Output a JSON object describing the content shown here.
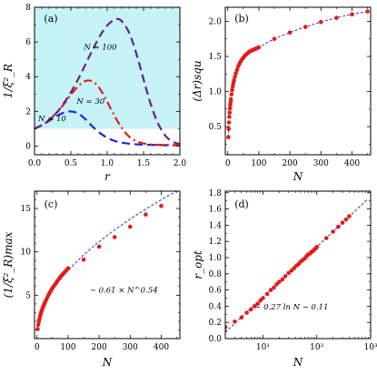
{
  "colors": {
    "shade": "#c5f3f6",
    "blue": "#1f24e0",
    "red": "#e41b17",
    "purple": "#6e1f8c",
    "fit": "#2f32d8"
  },
  "chart_data": [
    {
      "panel": "(a)",
      "type": "line",
      "xlabel": "r",
      "ylabel": "1/ξ²_R",
      "xlim": [
        0,
        2
      ],
      "ylim": [
        -0.5,
        8
      ],
      "xticks": [
        "0.0",
        "0.5",
        "1.0",
        "1.5",
        "2.0"
      ],
      "yticks": [
        "0",
        "2",
        "4",
        "6",
        "8"
      ],
      "shaded_region": {
        "y_from": 1,
        "y_to": 8
      },
      "series": [
        {
          "name": "N = 10",
          "style": "dashed",
          "color": "blue",
          "x": [
            0,
            0.1,
            0.2,
            0.3,
            0.4,
            0.5,
            0.6,
            0.7,
            0.8,
            0.9,
            1.0,
            1.1,
            1.2,
            1.3,
            1.4,
            1.5,
            1.6,
            1.7,
            1.8,
            1.9,
            2.0
          ],
          "y": [
            1.0,
            1.2,
            1.45,
            1.72,
            1.92,
            2.0,
            1.88,
            1.55,
            1.12,
            0.75,
            0.48,
            0.3,
            0.2,
            0.14,
            0.1,
            0.08,
            0.07,
            0.06,
            0.05,
            0.05,
            0.05
          ]
        },
        {
          "name": "N = 30",
          "style": "dash-dot",
          "color": "red",
          "x": [
            0,
            0.1,
            0.2,
            0.3,
            0.4,
            0.5,
            0.6,
            0.7,
            0.8,
            0.9,
            1.0,
            1.1,
            1.2,
            1.3,
            1.4,
            1.5,
            1.6,
            1.7,
            1.8,
            1.9,
            2.0
          ],
          "y": [
            1.0,
            1.2,
            1.5,
            1.9,
            2.4,
            2.95,
            3.45,
            3.75,
            3.72,
            3.3,
            2.55,
            1.75,
            1.05,
            0.55,
            0.28,
            0.15,
            0.09,
            0.07,
            0.06,
            0.05,
            0.05
          ]
        },
        {
          "name": "N = 100",
          "style": "dashed",
          "color": "purple",
          "x": [
            0,
            0.1,
            0.2,
            0.3,
            0.4,
            0.5,
            0.6,
            0.7,
            0.8,
            0.9,
            1.0,
            1.1,
            1.15,
            1.2,
            1.3,
            1.4,
            1.5,
            1.6,
            1.7,
            1.8,
            1.9,
            2.0
          ],
          "y": [
            1.0,
            1.2,
            1.5,
            1.9,
            2.45,
            3.1,
            3.85,
            4.7,
            5.55,
            6.35,
            6.95,
            7.3,
            7.32,
            7.2,
            6.55,
            5.35,
            3.85,
            2.4,
            1.3,
            0.6,
            0.25,
            0.12
          ]
        }
      ],
      "labels": [
        "N = 10",
        "N = 30",
        "N = 100"
      ]
    },
    {
      "panel": "(b)",
      "type": "scatter",
      "xlabel": "N",
      "ylabel": "(Δr)squ",
      "xlim": [
        -8,
        460
      ],
      "ylim": [
        0.1,
        2.2
      ],
      "xticks": [
        "0",
        "100",
        "200",
        "300",
        "400"
      ],
      "yticks": [
        "0.5",
        "1.0",
        "1.5",
        "2.0"
      ],
      "fit": {
        "style": "dashed",
        "color": "fit"
      },
      "points": {
        "x": [
          2,
          3,
          4,
          5,
          6,
          7,
          8,
          9,
          10,
          12,
          14,
          16,
          18,
          20,
          23,
          26,
          30,
          34,
          38,
          42,
          46,
          50,
          55,
          60,
          65,
          70,
          75,
          80,
          85,
          90,
          95,
          100,
          150,
          200,
          250,
          300,
          350,
          400,
          450
        ],
        "y": [
          0.35,
          0.47,
          0.56,
          0.64,
          0.7,
          0.76,
          0.81,
          0.85,
          0.89,
          0.96,
          1.02,
          1.07,
          1.12,
          1.16,
          1.21,
          1.26,
          1.31,
          1.36,
          1.4,
          1.43,
          1.46,
          1.48,
          1.51,
          1.53,
          1.55,
          1.57,
          1.58,
          1.59,
          1.6,
          1.61,
          1.62,
          1.63,
          1.75,
          1.84,
          1.92,
          1.99,
          2.05,
          2.1,
          2.14
        ]
      }
    },
    {
      "panel": "(c)",
      "type": "scatter",
      "xlabel": "N",
      "ylabel": "(1/ξ²_R)max",
      "xlim": [
        -8,
        460
      ],
      "ylim": [
        0,
        17
      ],
      "xticks": [
        "0",
        "100",
        "200",
        "300",
        "400"
      ],
      "yticks": [
        "5",
        "10",
        "15"
      ],
      "annotation": "∼ 0.61 × N^0.54",
      "fit": {
        "style": "dashed",
        "color": "fit",
        "a": 0.61,
        "b": 0.54
      },
      "points": {
        "x": [
          2,
          4,
          6,
          8,
          10,
          12,
          14,
          16,
          18,
          20,
          23,
          26,
          30,
          34,
          38,
          42,
          46,
          50,
          55,
          60,
          65,
          70,
          75,
          80,
          85,
          90,
          95,
          100,
          150,
          200,
          250,
          300,
          350,
          400
        ],
        "y": [
          1.1,
          1.6,
          2.0,
          2.3,
          2.6,
          2.85,
          3.1,
          3.3,
          3.5,
          3.7,
          3.95,
          4.2,
          4.5,
          4.8,
          5.1,
          5.35,
          5.6,
          5.85,
          6.1,
          6.35,
          6.6,
          6.85,
          7.1,
          7.3,
          7.5,
          7.7,
          7.9,
          8.1,
          9.1,
          10.6,
          11.7,
          12.9,
          14.3,
          15.3
        ]
      }
    },
    {
      "panel": "(d)",
      "type": "scatter",
      "xlabel": "N",
      "ylabel": "r_opt",
      "xscale": "log",
      "xlim": [
        2,
        1000
      ],
      "ylim": [
        0,
        1.82
      ],
      "xticks": [
        "10¹",
        "10²",
        "10³"
      ],
      "yticks": [
        "0.0",
        "0.2",
        "0.4",
        "0.6",
        "0.8",
        "1.0",
        "1.2",
        "1.4",
        "1.6",
        "1.8"
      ],
      "annotation": "∼ 0.27 ln N − 0.11",
      "fit": {
        "style": "dashed",
        "color": "fit",
        "a": 0.27,
        "b": -0.11
      },
      "points": {
        "x": [
          2,
          3,
          4,
          5,
          6,
          7,
          8,
          9,
          10,
          12,
          14,
          16,
          18,
          20,
          23,
          26,
          30,
          34,
          38,
          42,
          46,
          50,
          55,
          60,
          65,
          70,
          75,
          80,
          85,
          90,
          95,
          100,
          150,
          200,
          250,
          300,
          350,
          400
        ],
        "y": [
          0.14,
          0.21,
          0.26,
          0.32,
          0.36,
          0.4,
          0.43,
          0.47,
          0.5,
          0.55,
          0.6,
          0.63,
          0.67,
          0.7,
          0.73,
          0.77,
          0.81,
          0.84,
          0.87,
          0.9,
          0.92,
          0.95,
          0.97,
          0.99,
          1.02,
          1.04,
          1.05,
          1.07,
          1.08,
          1.1,
          1.11,
          1.13,
          1.24,
          1.32,
          1.38,
          1.43,
          1.47,
          1.51
        ]
      }
    }
  ]
}
